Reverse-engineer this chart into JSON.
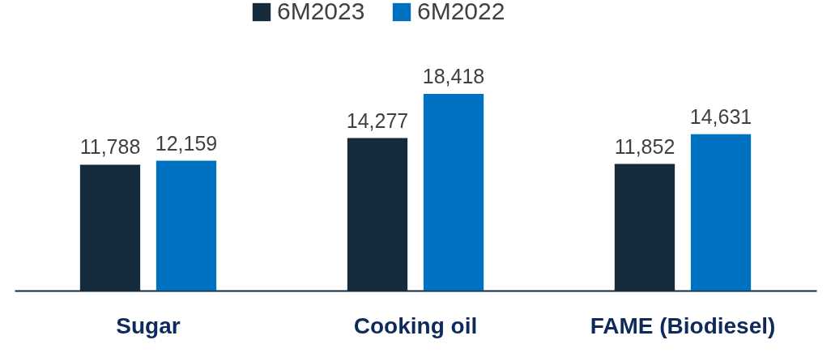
{
  "chart_data": {
    "type": "bar",
    "categories": [
      "Sugar",
      "Cooking oil",
      "FAME (Biodiesel)"
    ],
    "series": [
      {
        "name": "6M2023",
        "color": "#152b3c",
        "values": [
          11788,
          14277,
          11852
        ],
        "value_labels": [
          "11,788",
          "14,277",
          "11,852"
        ]
      },
      {
        "name": "6M2022",
        "color": "#0070c0",
        "values": [
          12159,
          18418,
          14631
        ],
        "value_labels": [
          "12,159",
          "18,418",
          "14,631"
        ]
      }
    ],
    "legend": "top"
  }
}
